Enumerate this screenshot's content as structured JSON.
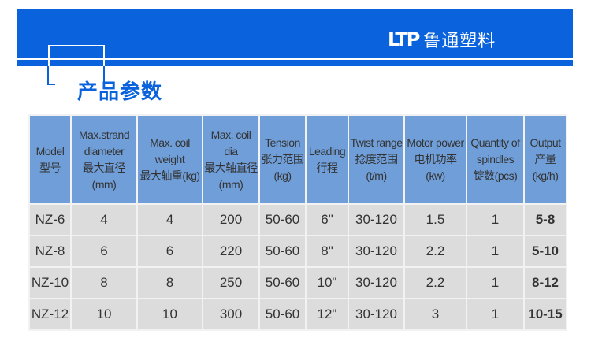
{
  "brand": {
    "logo_mark": "LTP",
    "name": "鲁通塑料",
    "color": "#0a63dc"
  },
  "section_title": "产品参数",
  "table": {
    "headers": [
      [
        "Model",
        "型号"
      ],
      [
        "Max.strand",
        "diameter",
        "最大直径(mm)"
      ],
      [
        "Max. coil",
        "weight",
        "最大轴重(kg)"
      ],
      [
        "Max. coil dia",
        "最大轴直径",
        "(mm)"
      ],
      [
        "Tension",
        "张力范围",
        "(kg)"
      ],
      [
        "Leading",
        "行程"
      ],
      [
        "Twist range",
        "捻度范围",
        "(t/m)"
      ],
      [
        "Motor power",
        "电机功率(kw)"
      ],
      [
        "Quantity of",
        "spindles",
        "锭数(pcs)"
      ],
      [
        "Output",
        "产量",
        "(kg/h)"
      ]
    ],
    "rows": [
      [
        "NZ-6",
        "4",
        "4",
        "200",
        "50-60",
        "6\"",
        "30-120",
        "1.5",
        "1",
        "5-8"
      ],
      [
        "NZ-8",
        "6",
        "6",
        "220",
        "50-60",
        "8\"",
        "30-120",
        "2.2",
        "1",
        "5-10"
      ],
      [
        "NZ-10",
        "8",
        "8",
        "250",
        "50-60",
        "10\"",
        "30-120",
        "2.2",
        "1",
        "8-12"
      ],
      [
        "NZ-12",
        "10",
        "10",
        "300",
        "50-60",
        "12\"",
        "30-120",
        "3",
        "1",
        "10-15"
      ]
    ]
  }
}
